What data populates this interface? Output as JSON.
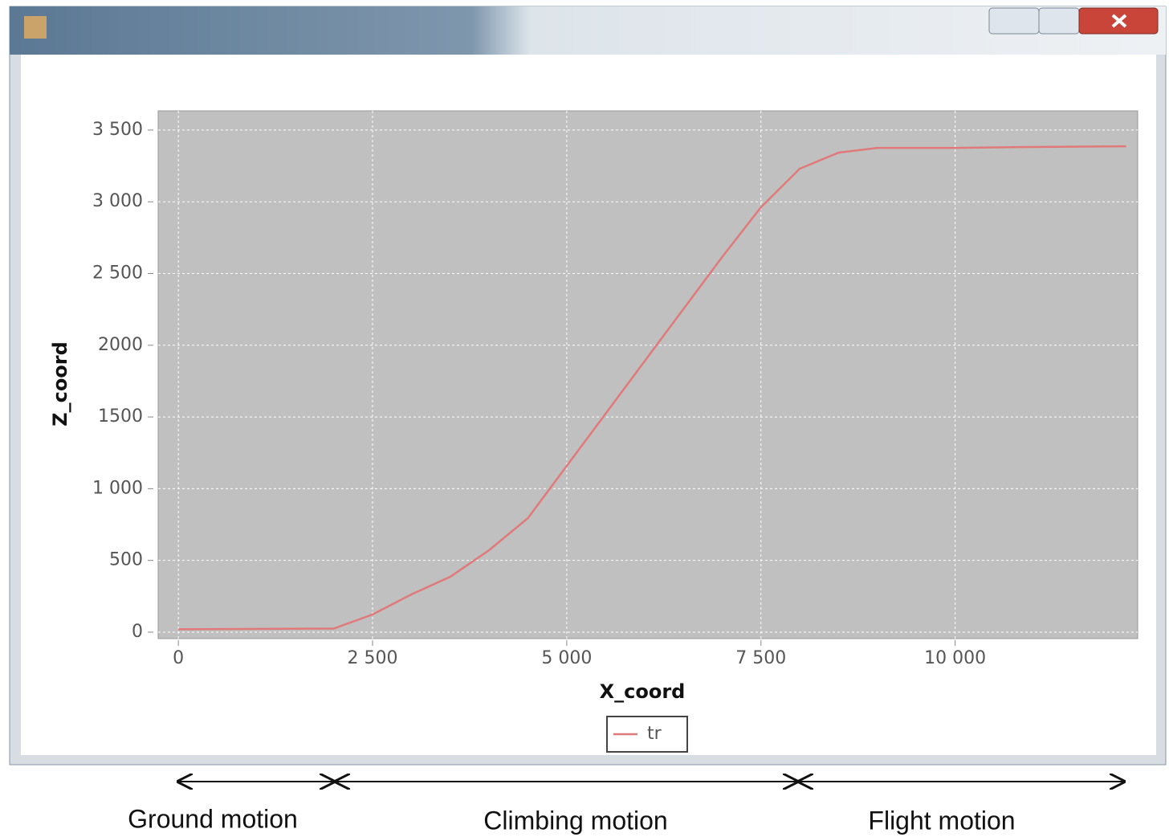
{
  "chart_data": {
    "type": "line",
    "x_label": "X_coord",
    "y_label": "Z_coord",
    "x": [
      0,
      2000,
      2500,
      3000,
      3500,
      4000,
      4500,
      5000,
      5500,
      6000,
      6500,
      7000,
      7500,
      8000,
      8500,
      9000,
      10000,
      11000,
      12200
    ],
    "series": [
      {
        "name": "tr",
        "color": "#e07a7a",
        "values": [
          20,
          25,
          123,
          263,
          386,
          571,
          795,
          1159,
          1523,
          1887,
          2251,
          2615,
          2962,
          3231,
          3343,
          3376,
          3376,
          3382,
          3387
        ]
      }
    ],
    "xlim": [
      -260,
      12350
    ],
    "xticks": [
      0,
      {
        "value": 2500,
        "label": "2 500"
      },
      {
        "value": 5000,
        "label": "5 000"
      },
      {
        "value": 7500,
        "label": "7 500"
      },
      {
        "value": 10000,
        "label": "10 000"
      }
    ],
    "ylim": [
      -45,
      3634
    ],
    "yticks": [
      0,
      500,
      {
        "value": 1000,
        "label": "1 000"
      },
      1500,
      2000,
      {
        "value": 2500,
        "label": "2 500"
      },
      {
        "value": 3000,
        "label": "3 000"
      },
      {
        "value": 3500,
        "label": "3 500"
      }
    ],
    "grid": true,
    "annotations": [
      "Ground motion",
      "Climbing motion",
      "Flight motion"
    ]
  }
}
